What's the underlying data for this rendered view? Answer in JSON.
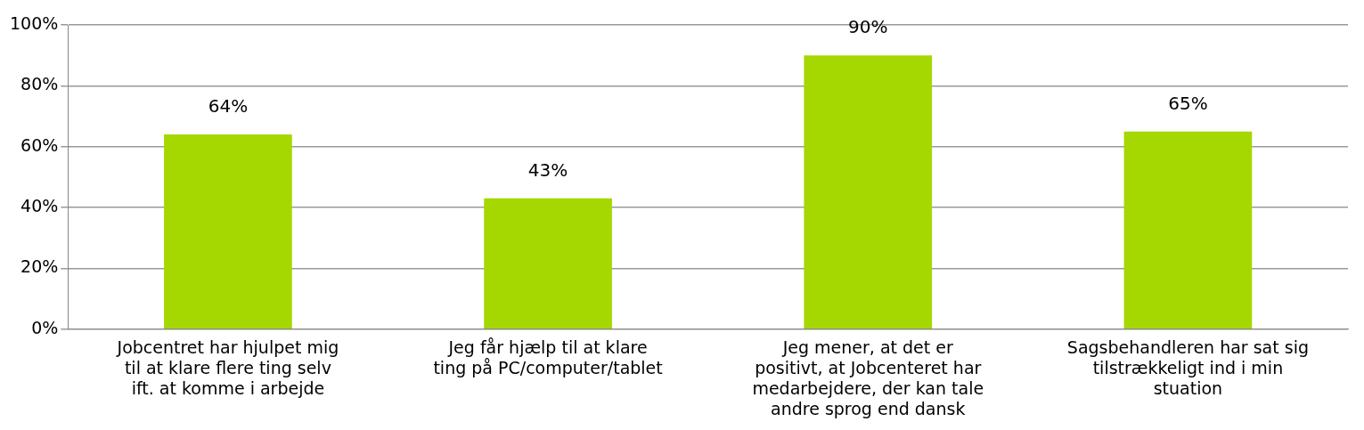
{
  "chart_data": {
    "type": "bar",
    "categories": [
      "Jobcentret har hjulpet mig til at klare flere ting selv ift. at komme i arbejde",
      "Jeg får hjælp til at klare ting på PC/computer/tablet",
      "Jeg mener, at det er positivt, at Jobcenteret har medarbejdere, der kan tale andre sprog end dansk",
      "Sagsbehandleren har sat sig tilstrækkeligt ind i min stuation"
    ],
    "values": [
      64,
      43,
      90,
      65
    ],
    "value_labels": [
      "64%",
      "43%",
      "90%",
      "65%"
    ],
    "color": "#a4d800",
    "ylim": [
      0,
      100
    ],
    "yticks": [
      {
        "value": 0,
        "label": "0%"
      },
      {
        "value": 20,
        "label": "20%"
      },
      {
        "value": 40,
        "label": "40%"
      },
      {
        "value": 60,
        "label": "60%"
      },
      {
        "value": 80,
        "label": "80%"
      },
      {
        "value": 100,
        "label": "100%"
      }
    ],
    "grid": "y",
    "legend": false
  }
}
